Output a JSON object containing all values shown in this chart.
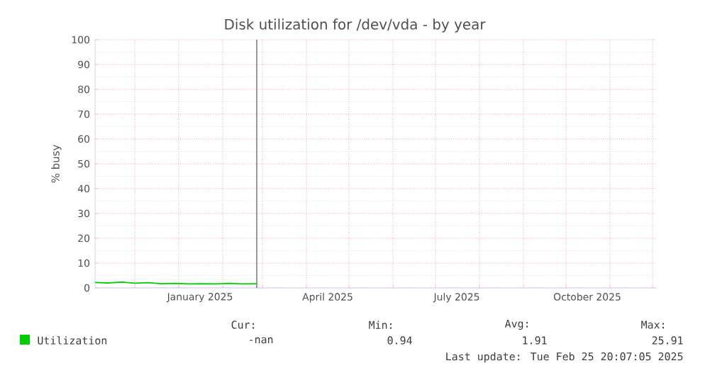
{
  "chart_data": {
    "type": "line",
    "title": "Disk utilization for /dev/vda - by year",
    "ylabel": "% busy",
    "x": [
      "2024-11-03",
      "2024-11-12",
      "2024-11-22",
      "2024-12-01",
      "2024-12-10",
      "2024-12-20",
      "2024-12-30",
      "2025-01-08",
      "2025-01-18",
      "2025-01-27",
      "2025-02-06",
      "2025-02-15",
      "2025-02-25"
    ],
    "series": [
      {
        "name": "Utilization",
        "color": "#00cc00",
        "values": [
          2.2,
          2.0,
          2.3,
          1.9,
          2.1,
          1.7,
          1.8,
          1.6,
          1.7,
          1.6,
          1.8,
          1.6,
          1.7
        ]
      }
    ],
    "xlim": [
      "2024-11-03",
      "2025-12-04"
    ],
    "xticks": [
      {
        "value": "2024-12-01",
        "label": null
      },
      {
        "value": "2025-01-01",
        "label": null
      },
      {
        "value": "2025-02-01",
        "label": null
      },
      {
        "value": "2025-03-01",
        "label": null
      },
      {
        "value": "2025-04-01",
        "label": null
      },
      {
        "value": "2025-05-01",
        "label": null
      },
      {
        "value": "2025-06-01",
        "label": null
      },
      {
        "value": "2025-07-01",
        "label": null
      },
      {
        "value": "2025-08-01",
        "label": null
      },
      {
        "value": "2025-09-01",
        "label": null
      },
      {
        "value": "2025-10-01",
        "label": null
      },
      {
        "value": "2025-11-01",
        "label": null
      },
      {
        "value": "2025-12-01",
        "label": null
      },
      {
        "value": "2025-01-16",
        "label": "January 2025"
      },
      {
        "value": "2025-04-16",
        "label": "April 2025"
      },
      {
        "value": "2025-07-16",
        "label": "July 2025"
      },
      {
        "value": "2025-10-16",
        "label": "October 2025"
      }
    ],
    "ylim": [
      0,
      100
    ],
    "yticks": [
      0,
      10,
      20,
      30,
      40,
      50,
      60,
      70,
      80,
      90,
      100
    ],
    "ref_lines": [
      {
        "axis": "x",
        "value": "2025-02-25",
        "color": "#808080"
      }
    ],
    "grid": true,
    "legend": "bottom left",
    "annotations": [
      "Cur:",
      "Min:",
      "Avg:",
      "Max:",
      "-nan",
      "0.94",
      "1.91",
      "25.91",
      "Last update: Tue Feb 25 20:07:05 2025"
    ]
  }
}
